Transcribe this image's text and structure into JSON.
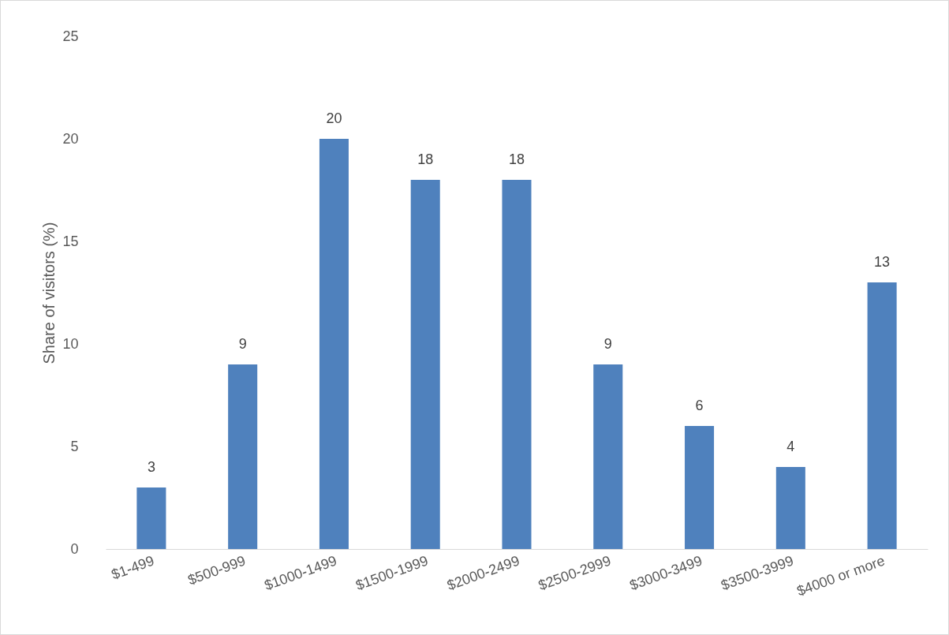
{
  "chart_data": {
    "type": "bar",
    "ylabel": "Share of visitors (%)",
    "categories": [
      "$1-499",
      "$500-999",
      "$1000-1499",
      "$1500-1999",
      "$2000-2499",
      "$2500-2999",
      "$3000-3499",
      "$3500-3999",
      "$4000 or more"
    ],
    "values": [
      3,
      9,
      20,
      18,
      18,
      9,
      6,
      4,
      13
    ],
    "color": "#4f81bd",
    "ylim": [
      0,
      25
    ],
    "yticks": [
      0,
      5,
      10,
      15,
      20,
      25
    ],
    "data_labels": true
  }
}
